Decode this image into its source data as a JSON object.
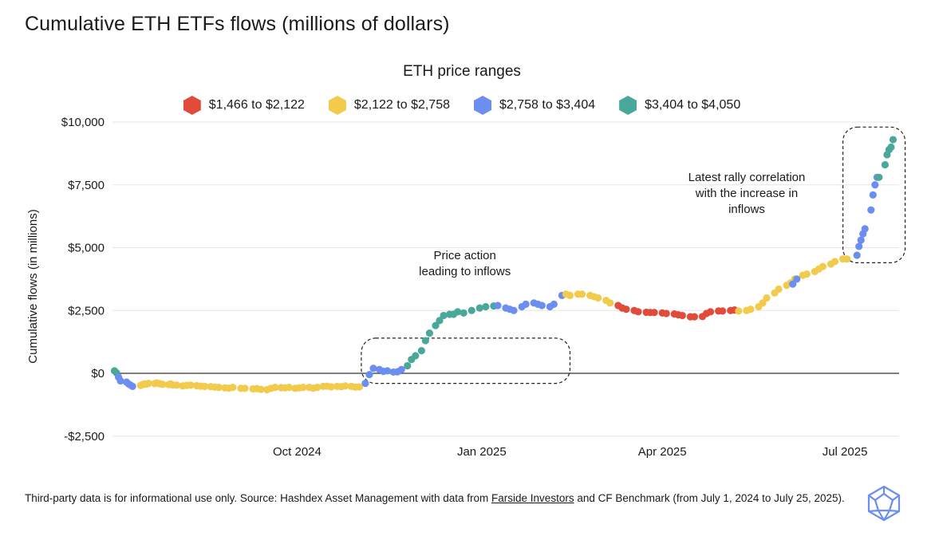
{
  "title": "Cumulative ETH ETFs flows (millions of dollars)",
  "footer": {
    "text_before": "Third-party data is for informational use only. Source: Hashdex Asset Management with data from ",
    "link": "Farside Investors",
    "text_after": " and CF Benchmark (from July 1, 2024 to July 25, 2025)."
  },
  "logo_icon": "hashdex-logo-icon",
  "chart_data": {
    "type": "scatter",
    "legend_title": "ETH price ranges",
    "ylabel": "Cumulative flows (in millions)",
    "y_ticks": [
      {
        "value": 10000,
        "label": "$10,000"
      },
      {
        "value": 7500,
        "label": "$7,500"
      },
      {
        "value": 5000,
        "label": "$5,000"
      },
      {
        "value": 2500,
        "label": "$2,500"
      },
      {
        "value": 0,
        "label": "$0"
      },
      {
        "value": -2500,
        "label": "-$2,500"
      }
    ],
    "ylim": [
      -2500,
      10000
    ],
    "xlim": [
      "2024-07-01",
      "2025-07-28"
    ],
    "x_ticks": [
      {
        "date": "2024-10-01",
        "label": "Oct 2024"
      },
      {
        "date": "2025-01-01",
        "label": "Jan 2025"
      },
      {
        "date": "2025-04-01",
        "label": "Apr 2025"
      },
      {
        "date": "2025-07-01",
        "label": "Jul 2025"
      }
    ],
    "grid": "horizontal",
    "legend_placement": "top-center",
    "categories": [
      {
        "name": "$1,466 to $2,122",
        "color": "#e04b3a"
      },
      {
        "name": "$2,122 to $2,758",
        "color": "#f2cb4c"
      },
      {
        "name": "$2,758 to $3,404",
        "color": "#6b8ef0"
      },
      {
        "name": "$3,404 to $4,050",
        "color": "#4aa89b"
      }
    ],
    "series": [
      {
        "range": 3,
        "x": [
          "2024-07-02",
          "2024-07-03"
        ],
        "y": [
          100,
          20
        ]
      },
      {
        "range": 2,
        "x": [
          "2024-07-04",
          "2024-07-05",
          "2024-07-08",
          "2024-07-09",
          "2024-07-10",
          "2024-07-11"
        ],
        "y": [
          -150,
          -300,
          -350,
          -420,
          -470,
          -520
        ]
      },
      {
        "range": 1,
        "x": [
          "2024-07-15",
          "2024-07-16",
          "2024-07-17",
          "2024-07-18",
          "2024-07-19",
          "2024-07-22",
          "2024-07-23",
          "2024-07-24",
          "2024-07-25",
          "2024-07-26",
          "2024-07-29",
          "2024-07-30",
          "2024-07-31",
          "2024-08-02",
          "2024-08-05",
          "2024-08-07",
          "2024-08-09",
          "2024-08-12",
          "2024-08-14",
          "2024-08-16",
          "2024-08-19",
          "2024-08-21",
          "2024-08-23",
          "2024-08-26",
          "2024-08-28",
          "2024-08-30",
          "2024-09-03",
          "2024-09-05",
          "2024-09-09",
          "2024-09-11",
          "2024-09-13",
          "2024-09-16",
          "2024-09-18",
          "2024-09-20",
          "2024-09-23",
          "2024-09-25",
          "2024-09-27",
          "2024-09-30",
          "2024-10-02",
          "2024-10-04",
          "2024-10-07",
          "2024-10-09",
          "2024-10-11",
          "2024-10-14",
          "2024-10-16",
          "2024-10-18",
          "2024-10-21",
          "2024-10-23",
          "2024-10-25",
          "2024-10-28",
          "2024-10-30",
          "2024-11-01"
        ],
        "y": [
          -480,
          -450,
          -420,
          -430,
          -400,
          -410,
          -380,
          -400,
          -420,
          -440,
          -450,
          -420,
          -460,
          -470,
          -500,
          -480,
          -470,
          -490,
          -510,
          -520,
          -530,
          -550,
          -560,
          -580,
          -590,
          -560,
          -600,
          -600,
          -620,
          -610,
          -640,
          -650,
          -600,
          -560,
          -570,
          -580,
          -560,
          -600,
          -580,
          -560,
          -560,
          -590,
          -560,
          -520,
          -510,
          -540,
          -520,
          -530,
          -500,
          -520,
          -550,
          -540
        ]
      },
      {
        "range": 2,
        "x": [
          "2024-11-04",
          "2024-11-06",
          "2024-11-08",
          "2024-11-11",
          "2024-11-13",
          "2024-11-15",
          "2024-11-18",
          "2024-11-20",
          "2024-11-22"
        ],
        "y": [
          -400,
          -50,
          200,
          150,
          80,
          100,
          50,
          60,
          150
        ]
      },
      {
        "range": 3,
        "x": [
          "2024-11-25",
          "2024-11-27",
          "2024-11-29",
          "2024-12-02",
          "2024-12-04",
          "2024-12-06",
          "2024-12-09",
          "2024-12-11",
          "2024-12-13",
          "2024-12-16",
          "2024-12-18",
          "2024-12-20",
          "2024-12-23",
          "2024-12-27",
          "2024-12-31",
          "2025-01-03",
          "2025-01-07"
        ],
        "y": [
          300,
          550,
          700,
          900,
          1300,
          1600,
          1900,
          2100,
          2300,
          2350,
          2350,
          2450,
          2400,
          2500,
          2600,
          2650,
          2680
        ]
      },
      {
        "range": 2,
        "x": [
          "2025-01-09",
          "2025-01-13",
          "2025-01-15",
          "2025-01-17",
          "2025-01-21",
          "2025-01-23",
          "2025-01-27",
          "2025-01-29",
          "2025-01-31",
          "2025-02-04",
          "2025-02-06",
          "2025-02-10"
        ],
        "y": [
          2700,
          2600,
          2550,
          2500,
          2650,
          2750,
          2800,
          2750,
          2700,
          2650,
          2750,
          3100
        ]
      },
      {
        "range": 1,
        "x": [
          "2025-02-12",
          "2025-02-14",
          "2025-02-18",
          "2025-02-20",
          "2025-02-24",
          "2025-02-26",
          "2025-02-28",
          "2025-03-04",
          "2025-03-06"
        ],
        "y": [
          3150,
          3100,
          3150,
          3150,
          3100,
          3050,
          3000,
          2900,
          2800
        ]
      },
      {
        "range": 0,
        "x": [
          "2025-03-10",
          "2025-03-12",
          "2025-03-14",
          "2025-03-18",
          "2025-03-20",
          "2025-03-24",
          "2025-03-26",
          "2025-03-28",
          "2025-04-01",
          "2025-04-03",
          "2025-04-07",
          "2025-04-09",
          "2025-04-11",
          "2025-04-15",
          "2025-04-17",
          "2025-04-21",
          "2025-04-23",
          "2025-04-25",
          "2025-04-29",
          "2025-05-01",
          "2025-05-05",
          "2025-05-07"
        ],
        "y": [
          2700,
          2600,
          2550,
          2500,
          2450,
          2430,
          2420,
          2420,
          2400,
          2380,
          2360,
          2330,
          2300,
          2250,
          2250,
          2260,
          2380,
          2450,
          2480,
          2480,
          2500,
          2520
        ]
      },
      {
        "range": 1,
        "x": [
          "2025-05-09",
          "2025-05-13",
          "2025-05-15",
          "2025-05-19",
          "2025-05-21",
          "2025-05-23",
          "2025-05-27",
          "2025-05-29",
          "2025-06-02",
          "2025-06-04",
          "2025-06-06",
          "2025-06-10",
          "2025-06-12"
        ],
        "y": [
          2480,
          2500,
          2550,
          2650,
          2800,
          3000,
          3200,
          3350,
          3500,
          3600,
          3750,
          3900,
          3950
        ]
      },
      {
        "range": 2,
        "x": [
          "2025-06-05",
          "2025-06-07"
        ],
        "y": [
          3550,
          3750
        ]
      },
      {
        "range": 1,
        "x": [
          "2025-06-16",
          "2025-06-18",
          "2025-06-20",
          "2025-06-24",
          "2025-06-26",
          "2025-06-30",
          "2025-07-02"
        ],
        "y": [
          4050,
          4150,
          4250,
          4350,
          4450,
          4550,
          4550
        ]
      },
      {
        "range": 2,
        "x": [
          "2025-07-07",
          "2025-07-08",
          "2025-07-09",
          "2025-07-10",
          "2025-07-11",
          "2025-07-14",
          "2025-07-15",
          "2025-07-16",
          "2025-07-17"
        ],
        "y": [
          4700,
          5050,
          5300,
          5550,
          5750,
          6500,
          7100,
          7500,
          7800
        ]
      },
      {
        "range": 3,
        "x": [
          "2025-07-18",
          "2025-07-21",
          "2025-07-22",
          "2025-07-23",
          "2025-07-24",
          "2025-07-25"
        ],
        "y": [
          7800,
          8300,
          8700,
          8900,
          9000,
          9300
        ]
      }
    ],
    "annotations": [
      {
        "lines": [
          "Price action",
          "leading to inflows"
        ]
      },
      {
        "lines": [
          "Latest rally correlation",
          "with the increase in",
          "inflows"
        ]
      }
    ]
  }
}
